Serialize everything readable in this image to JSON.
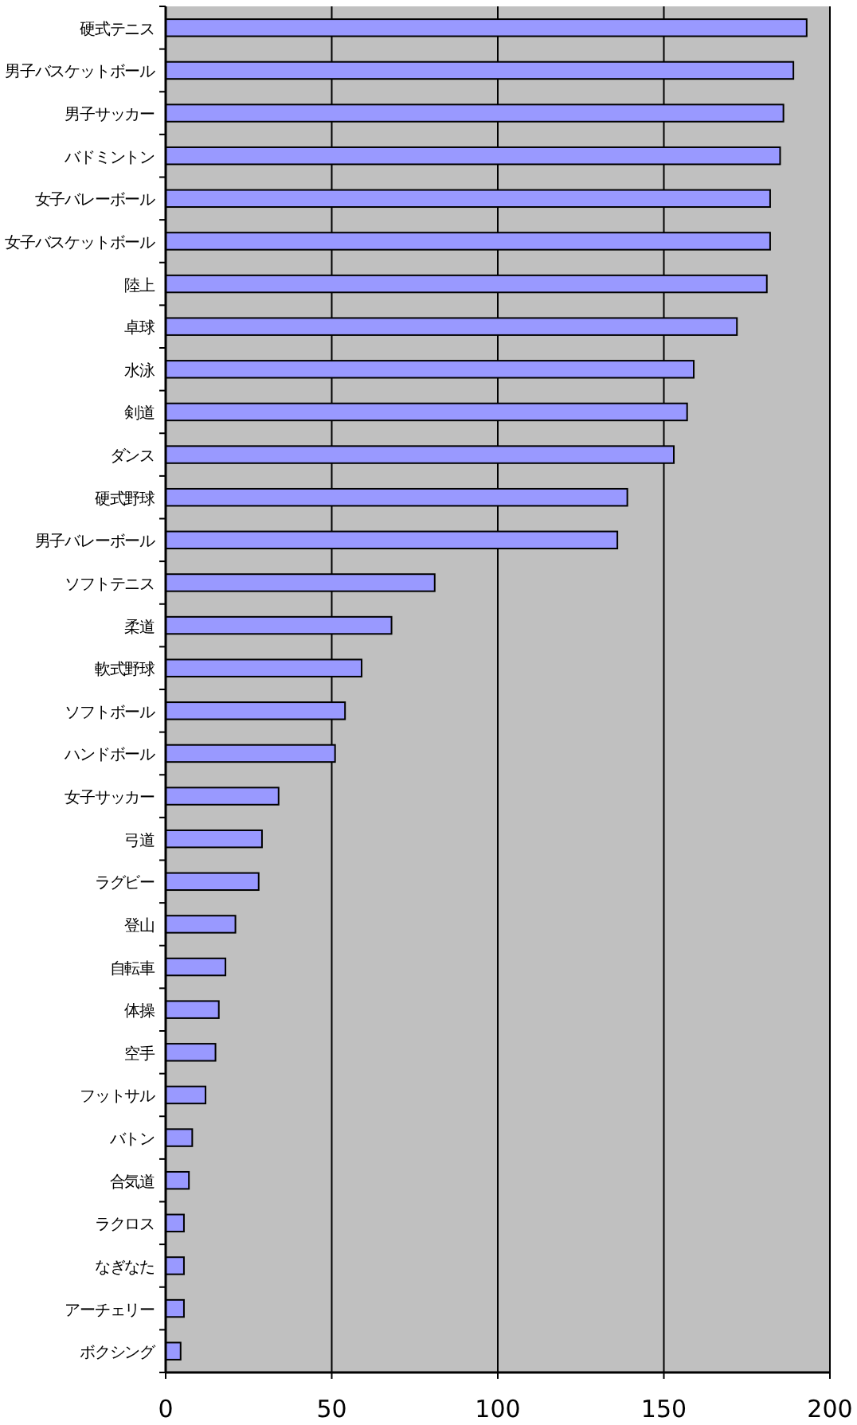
{
  "chart_data": {
    "type": "bar",
    "orientation": "horizontal",
    "categories": [
      "硬式テニス",
      "男子バスケットボール",
      "男子サッカー",
      "バドミントン",
      "女子バレーボール",
      "女子バスケットボール",
      "陸上",
      "卓球",
      "水泳",
      "剣道",
      "ダンス",
      "硬式野球",
      "男子バレーボール",
      "ソフトテニス",
      "柔道",
      "軟式野球",
      "ソフトボール",
      "ハンドボール",
      "女子サッカー",
      "弓道",
      "ラグビー",
      "登山",
      "自転車",
      "体操",
      "空手",
      "フットサル",
      "バトン",
      "合気道",
      "ラクロス",
      "なぎなた",
      "アーチェリー",
      "ボクシング"
    ],
    "values": [
      193,
      189,
      186,
      185,
      182,
      182,
      181,
      172,
      159,
      157,
      153,
      139,
      136,
      81,
      68,
      59,
      54,
      51,
      34,
      29,
      28,
      21,
      18,
      16,
      15,
      12,
      8,
      7,
      5.5,
      5.5,
      5.5,
      4.5
    ],
    "color": "#9999ff",
    "xlim": [
      0,
      200
    ],
    "xticks": [
      0,
      50,
      100,
      150,
      200
    ],
    "grid": "x"
  }
}
